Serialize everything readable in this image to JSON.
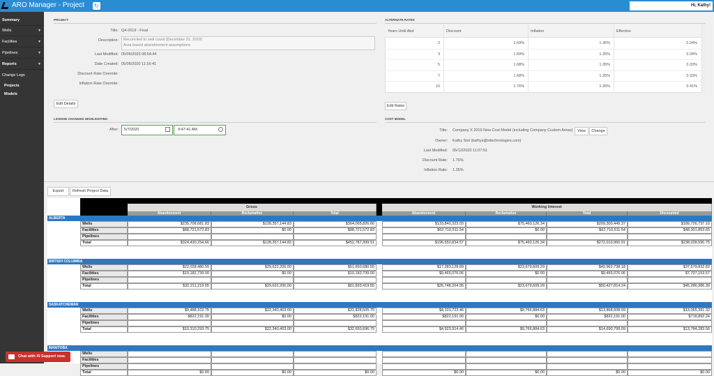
{
  "header": {
    "title": "ARO Manager - Project",
    "greeting": "Hi, Kathy!"
  },
  "sidebar": {
    "items": [
      "Summary",
      "Wells",
      "Facilities",
      "Pipelines",
      "Reports",
      "Change Logs",
      "Projects",
      "Models"
    ]
  },
  "project": {
    "heading": "PROJECT",
    "fields": [
      {
        "label": "Title:",
        "value": "Q4-2019 - Final"
      },
      {
        "label": "Description:",
        "lines": [
          "Reconciled to well count (December 31, 2019)",
          "Area based abandonment assumptions"
        ]
      },
      {
        "label": "Last Modified:",
        "value": "05/06/2020 08:54:44"
      },
      {
        "label": "Date Created:",
        "value": "05/05/2020 11:16:41"
      },
      {
        "label": "Discount Rate Override:"
      },
      {
        "label": "Inflation Rate Override:"
      }
    ],
    "button": "Edit Details"
  },
  "license": {
    "heading": "LICENSE CHANGED HIGHLIGHTING",
    "label": "After:",
    "date": "5/7/2020",
    "time": "9:47:41 AM"
  },
  "alternate_rates": {
    "heading": "ALTERNATE RATES",
    "columns": [
      "Years Until Abd",
      "Discount",
      "Inflation",
      "Effective"
    ],
    "rows": [
      [
        "2",
        "1.69%",
        "1.35%",
        "0.34%"
      ],
      [
        "3",
        "1.69%",
        "1.35%",
        "0.34%"
      ],
      [
        "5",
        "1.68%",
        "1.35%",
        "0.33%"
      ],
      [
        "7",
        "1.68%",
        "1.35%",
        "0.33%"
      ],
      [
        "10",
        "1.76%",
        "1.35%",
        "0.41%"
      ]
    ],
    "button": "Edit Rates"
  },
  "cost_model": {
    "heading": "COST MODEL",
    "fields": [
      {
        "label": "Title:",
        "value": "Company X 2019 New Cost Model (including Company Custom Areas)"
      },
      {
        "label": "Owner:",
        "value": "Kathy Stol (kathys@xitechnologies.com)"
      },
      {
        "label": "Last Modified:",
        "value": "05/12/2020 11:07:51"
      },
      {
        "label": "Discount Rate:",
        "value": "1.76%"
      },
      {
        "label": "Inflation Rate:",
        "value": "1.35%"
      }
    ],
    "buttons": [
      "View",
      "Change"
    ]
  },
  "toolbar": {
    "buttons": [
      "Export",
      "Refresh Project Data"
    ]
  },
  "summary": {
    "groups": [
      "Gross",
      "Working Interest"
    ],
    "columns": [
      "Abandonment",
      "Reclamation",
      "Total",
      "Abandonment",
      "Reclamation",
      "Total",
      "Discounted"
    ],
    "provinces": [
      {
        "name": "ALBERTA",
        "rows": [
          {
            "label": "Wells",
            "values": [
              "$235,708,681.83",
              "$128,357,144.83",
              "$364,065,826.66",
              "$133,840,323.03",
              "$75,460,126.34",
              "$209,300,449.37",
              "$189,726,737.10"
            ]
          },
          {
            "label": "Facilities",
            "values": [
              "$88,721,572.83",
              "$0.00",
              "$88,721,572.83",
              "$62,710,511.54",
              "$0.00",
              "$62,710,511.54",
              "$48,301,853.65"
            ]
          },
          {
            "label": "Pipelines"
          },
          {
            "label": "Total",
            "values": [
              "$324,430,254.66",
              "$128,357,144.83",
              "$452,787,399.51",
              "$196,550,834.57",
              "$75,460,126.34",
              "$272,010,960.91",
              "$238,028,590.75"
            ]
          }
        ]
      },
      {
        "name": "BRITISH COLUMBIA",
        "rows": [
          {
            "label": "Wells",
            "values": [
              "$22,028,480.55",
              "$29,622,200.00",
              "$51,650,680.55",
              "$17,283,128.89",
              "$23,679,609.29",
              "$40,962,738.18",
              "$37,579,832.82"
            ]
          },
          {
            "label": "Facilities",
            "values": [
              "$10,182,739.00",
              "$0.00",
              "$10,182,739.00",
              "$9,465,076.06",
              "$0.00",
              "$9,465,076.06",
              "$7,707,153.57"
            ]
          },
          {
            "label": "Pipelines"
          },
          {
            "label": "Total",
            "values": [
              "$32,211,219.55",
              "$29,622,200.00",
              "$61,833,419.55",
              "$26,748,204.95",
              "$23,679,609.29",
              "$50,427,814.24",
              "$45,286,986.39"
            ]
          }
        ]
      },
      {
        "name": "SASKATCHEWAN",
        "rows": [
          {
            "label": "Wells",
            "values": [
              "$9,488,102.75",
              "$22,340,403.00",
              "$31,828,505.75",
              "$4,101,723.46",
              "$9,766,884.63",
              "$13,868,608.09",
              "$13,065,391.32"
            ]
          },
          {
            "label": "Facilities",
            "values": [
              "$822,191.00",
              "$0.00",
              "$822,191.00",
              "$822,191.00",
              "$0.00",
              "$822,191.00",
              "$718,892.24"
            ]
          },
          {
            "label": "Pipelines"
          },
          {
            "label": "Total",
            "values": [
              "$10,310,293.75",
              "$22,340,403.00",
              "$32,650,696.75",
              "$4,923,914.46",
              "$9,766,884.63",
              "$14,690,799.09",
              "$13,784,283.56"
            ]
          }
        ]
      },
      {
        "name": "MANITOBA",
        "rows": [
          {
            "label": "Wells"
          },
          {
            "label": "Facilities"
          },
          {
            "label": "Pipelines"
          },
          {
            "label": "Total",
            "values": [
              "$0.00",
              "$0.00",
              "$0.00",
              "$0.00",
              "$0.00",
              "$0.00",
              "$0.00"
            ]
          }
        ]
      }
    ]
  },
  "chat": "Chat with XI Support now."
}
